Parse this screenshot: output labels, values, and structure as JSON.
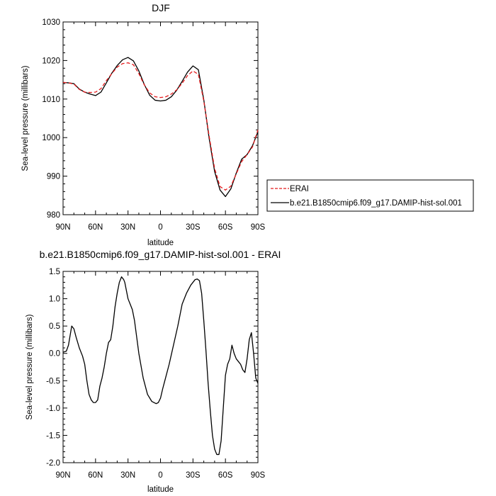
{
  "chart_data": [
    {
      "type": "line",
      "title": "DJF",
      "xlabel": "latitude",
      "ylabel": "Sea-level pressure (millibars)",
      "xlim": [
        90,
        -90
      ],
      "ylim": [
        980,
        1030
      ],
      "x_ticks": [
        90,
        60,
        30,
        0,
        -30,
        -60,
        -90
      ],
      "x_tick_labels": [
        "90N",
        "60N",
        "30N",
        "0",
        "30S",
        "60S",
        "90S"
      ],
      "y_ticks": [
        980,
        990,
        1000,
        1010,
        1020,
        1030
      ],
      "y_tick_labels": [
        "980",
        "990",
        "1000",
        "1010",
        "1020",
        "1030"
      ],
      "x": [
        90,
        85,
        80,
        75,
        70,
        65,
        60,
        55,
        50,
        45,
        40,
        35,
        30,
        25,
        20,
        15,
        10,
        5,
        0,
        -5,
        -10,
        -15,
        -20,
        -25,
        -30,
        -35,
        -40,
        -45,
        -50,
        -55,
        -60,
        -65,
        -70,
        -75,
        -80,
        -85,
        -90
      ],
      "series": [
        {
          "name": "ERAI",
          "color": "#e41a1c",
          "dash": "dashed",
          "values": [
            1014.3,
            1014.2,
            1013.9,
            1012.5,
            1011.8,
            1011.7,
            1011.8,
            1012.7,
            1014.8,
            1016.6,
            1018.3,
            1019.2,
            1019.4,
            1018.9,
            1016.6,
            1013.7,
            1011.6,
            1010.6,
            1010.4,
            1010.6,
            1011.3,
            1012.4,
            1014.1,
            1016.1,
            1017.3,
            1016.4,
            1009.5,
            1000.3,
            992.0,
            987.3,
            986.4,
            987.4,
            990.6,
            993.8,
            995.6,
            997.6,
            1002.0
          ]
        },
        {
          "name": "b.e21.B1850cmip6.f09_g17.DAMIP-hist-sol.001",
          "color": "#000000",
          "dash": "solid",
          "values": [
            1014.3,
            1014.2,
            1014.0,
            1012.6,
            1011.8,
            1011.3,
            1010.9,
            1011.8,
            1014.2,
            1016.7,
            1018.7,
            1020.2,
            1020.8,
            1019.9,
            1017.3,
            1013.8,
            1011.0,
            1009.7,
            1009.5,
            1009.7,
            1010.6,
            1012.3,
            1014.6,
            1017.0,
            1018.6,
            1017.6,
            1009.8,
            999.7,
            991.2,
            986.4,
            984.7,
            986.7,
            990.8,
            994.4,
            995.6,
            997.9,
            1001.5
          ]
        }
      ],
      "legend": {
        "placement": "right"
      }
    },
    {
      "type": "line",
      "title": "b.e21.B1850cmip6.f09_g17.DAMIP-hist-sol.001 - ERAI",
      "xlabel": "latitude",
      "ylabel": "Sea-level pressure (millibars)",
      "xlim": [
        90,
        -90
      ],
      "ylim": [
        -2.0,
        1.5
      ],
      "x_ticks": [
        90,
        60,
        30,
        0,
        -30,
        -60,
        -90
      ],
      "x_tick_labels": [
        "90N",
        "60N",
        "30N",
        "0",
        "30S",
        "60S",
        "90S"
      ],
      "y_ticks": [
        1.5,
        1.0,
        0.5,
        0.0,
        -0.5,
        -1.0,
        -1.5,
        -2.0
      ],
      "y_tick_labels": [
        "1.5",
        "1.0",
        "0.5",
        "0.0",
        "-0.5",
        "-1.0",
        "-1.5",
        "-2.0"
      ],
      "series": [
        {
          "color": "#000000",
          "x": [
            90,
            87,
            85,
            82,
            80,
            78,
            75,
            72,
            70,
            68,
            66,
            64,
            62,
            60,
            58,
            56,
            54,
            52,
            50,
            48,
            46,
            44,
            42,
            40,
            38,
            36,
            34,
            33,
            32,
            31,
            30,
            29,
            28,
            26,
            24,
            22,
            20,
            16,
            12,
            8,
            4,
            2,
            0,
            -2,
            -4,
            -8,
            -12,
            -16,
            -20,
            -24,
            -28,
            -32,
            -34,
            -36,
            -38,
            -40,
            -42,
            -44,
            -46,
            -48,
            -50,
            -52,
            -54,
            -56,
            -58,
            -60,
            -62,
            -64,
            -66,
            -68,
            -70,
            -72,
            -74,
            -76,
            -78,
            -80,
            -82,
            -84,
            -86,
            -88,
            -90
          ],
          "values": [
            0.02,
            0.04,
            0.15,
            0.5,
            0.45,
            0.3,
            0.1,
            -0.05,
            -0.2,
            -0.5,
            -0.75,
            -0.85,
            -0.9,
            -0.9,
            -0.85,
            -0.6,
            -0.45,
            -0.25,
            0.0,
            0.2,
            0.25,
            0.5,
            0.85,
            1.1,
            1.3,
            1.4,
            1.35,
            1.3,
            1.2,
            1.1,
            1.0,
            0.95,
            0.9,
            0.8,
            0.6,
            0.3,
            0.0,
            -0.45,
            -0.75,
            -0.88,
            -0.92,
            -0.9,
            -0.82,
            -0.65,
            -0.5,
            -0.2,
            0.15,
            0.5,
            0.9,
            1.1,
            1.25,
            1.35,
            1.36,
            1.33,
            1.1,
            0.6,
            0.05,
            -0.55,
            -1.05,
            -1.5,
            -1.75,
            -1.85,
            -1.85,
            -1.6,
            -1.0,
            -0.4,
            -0.2,
            -0.1,
            0.15,
            0.0,
            -0.1,
            -0.15,
            -0.2,
            -0.3,
            -0.35,
            -0.1,
            0.25,
            0.38,
            0.0,
            -0.45,
            -0.55
          ]
        }
      ]
    }
  ]
}
